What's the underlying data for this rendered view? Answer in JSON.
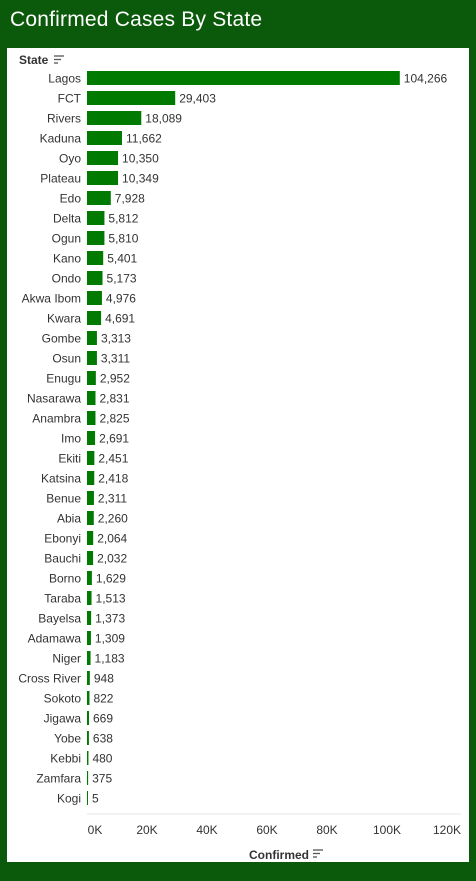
{
  "header": {
    "title": "Confirmed Cases By State"
  },
  "colors": {
    "bar": "#007a00",
    "background": "#0b5a0b",
    "panel": "#ffffff",
    "text": "#333333"
  },
  "icons": {
    "sort": "sort-descending-icon"
  },
  "chart_data": {
    "type": "bar",
    "orientation": "horizontal",
    "row_header": "State",
    "xlabel": "Confirmed",
    "xlim": [
      0,
      120000
    ],
    "x_ticks": [
      {
        "value": 0,
        "label": "0K"
      },
      {
        "value": 20000,
        "label": "20K"
      },
      {
        "value": 40000,
        "label": "40K"
      },
      {
        "value": 60000,
        "label": "60K"
      },
      {
        "value": 80000,
        "label": "80K"
      },
      {
        "value": 100000,
        "label": "100K"
      },
      {
        "value": 120000,
        "label": "120K"
      }
    ],
    "categories": [
      "Lagos",
      "FCT",
      "Rivers",
      "Kaduna",
      "Oyo",
      "Plateau",
      "Edo",
      "Delta",
      "Ogun",
      "Kano",
      "Ondo",
      "Akwa Ibom",
      "Kwara",
      "Gombe",
      "Osun",
      "Enugu",
      "Nasarawa",
      "Anambra",
      "Imo",
      "Ekiti",
      "Katsina",
      "Benue",
      "Abia",
      "Ebonyi",
      "Bauchi",
      "Borno",
      "Taraba",
      "Bayelsa",
      "Adamawa",
      "Niger",
      "Cross River",
      "Sokoto",
      "Jigawa",
      "Yobe",
      "Kebbi",
      "Zamfara",
      "Kogi"
    ],
    "values": [
      104266,
      29403,
      18089,
      11662,
      10350,
      10349,
      7928,
      5812,
      5810,
      5401,
      5173,
      4976,
      4691,
      3313,
      3311,
      2952,
      2831,
      2825,
      2691,
      2451,
      2418,
      2311,
      2260,
      2064,
      2032,
      1629,
      1513,
      1373,
      1309,
      1183,
      948,
      822,
      669,
      638,
      480,
      375,
      5
    ],
    "value_labels": [
      "104,266",
      "29,403",
      "18,089",
      "11,662",
      "10,350",
      "10,349",
      "7,928",
      "5,812",
      "5,810",
      "5,401",
      "5,173",
      "4,976",
      "4,691",
      "3,313",
      "3,311",
      "2,952",
      "2,831",
      "2,825",
      "2,691",
      "2,451",
      "2,418",
      "2,311",
      "2,260",
      "2,064",
      "2,032",
      "1,629",
      "1,513",
      "1,373",
      "1,309",
      "1,183",
      "948",
      "822",
      "669",
      "638",
      "480",
      "375",
      "5"
    ],
    "grid": false
  }
}
